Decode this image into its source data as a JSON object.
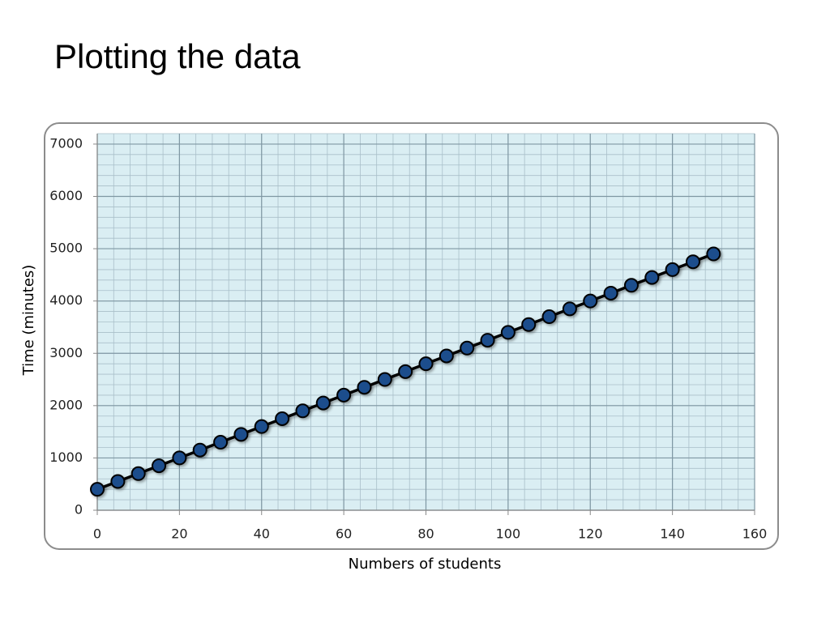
{
  "chart_data": {
    "type": "line",
    "title": "Plotting the data",
    "x_label": "Numbers of students",
    "y_label": "Time (minutes)",
    "x": [
      0,
      5,
      10,
      15,
      20,
      25,
      30,
      35,
      40,
      45,
      50,
      55,
      60,
      65,
      70,
      75,
      80,
      85,
      90,
      95,
      100,
      105,
      110,
      115,
      120,
      125,
      130,
      135,
      140,
      145,
      150
    ],
    "values": [
      400,
      550,
      700,
      850,
      1000,
      1150,
      1300,
      1450,
      1600,
      1750,
      1900,
      2050,
      2200,
      2350,
      2500,
      2650,
      2800,
      2950,
      3100,
      3250,
      3400,
      3550,
      3700,
      3850,
      4000,
      4150,
      4300,
      4450,
      4600,
      4750,
      4900
    ],
    "color": "#1f4e8c",
    "line_color": "#000000",
    "plot_background": "#daeef3",
    "grid": true,
    "xlim": [
      0,
      160
    ],
    "xticks": [
      0,
      20,
      40,
      60,
      80,
      100,
      120,
      140,
      160
    ],
    "ylim": [
      0,
      7200
    ],
    "yticks": [
      0,
      1000,
      2000,
      3000,
      4000,
      5000,
      6000,
      7000
    ]
  }
}
